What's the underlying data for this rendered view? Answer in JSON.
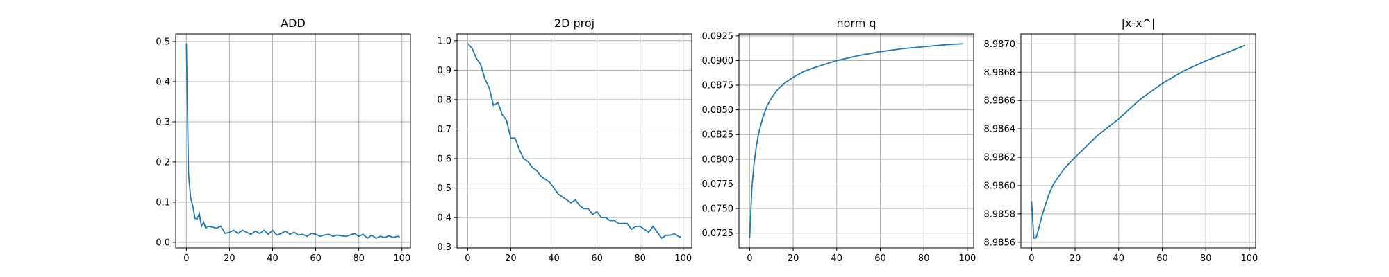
{
  "chart_data": [
    {
      "type": "line",
      "title": "ADD",
      "color": "#1f77b4",
      "grid": true,
      "x": [
        0,
        1,
        2,
        3,
        4,
        5,
        6,
        7,
        8,
        9,
        10,
        12,
        14,
        16,
        18,
        20,
        22,
        24,
        26,
        28,
        30,
        32,
        34,
        36,
        38,
        40,
        42,
        44,
        46,
        48,
        50,
        52,
        54,
        56,
        58,
        60,
        62,
        64,
        66,
        68,
        70,
        72,
        74,
        76,
        78,
        80,
        82,
        84,
        86,
        88,
        90,
        92,
        94,
        96,
        98,
        99
      ],
      "values": [
        0.495,
        0.17,
        0.11,
        0.09,
        0.06,
        0.058,
        0.072,
        0.04,
        0.05,
        0.035,
        0.04,
        0.038,
        0.035,
        0.04,
        0.022,
        0.025,
        0.03,
        0.022,
        0.03,
        0.025,
        0.02,
        0.028,
        0.022,
        0.03,
        0.02,
        0.03,
        0.018,
        0.022,
        0.028,
        0.02,
        0.025,
        0.018,
        0.02,
        0.015,
        0.022,
        0.02,
        0.015,
        0.018,
        0.02,
        0.015,
        0.018,
        0.016,
        0.015,
        0.018,
        0.022,
        0.015,
        0.02,
        0.01,
        0.018,
        0.01,
        0.015,
        0.012,
        0.016,
        0.012,
        0.015,
        0.013
      ],
      "xlim": [
        -4.95,
        103.95
      ],
      "xticks": [
        0,
        20,
        40,
        60,
        80,
        100
      ],
      "ylim": [
        -0.014,
        0.519
      ],
      "yticks": [
        {
          "value": 0,
          "label": "0.0"
        },
        {
          "value": 0.1,
          "label": "0.1"
        },
        {
          "value": 0.2,
          "label": "0.2"
        },
        {
          "value": 0.3,
          "label": "0.3"
        },
        {
          "value": 0.4,
          "label": "0.4"
        },
        {
          "value": 0.5,
          "label": "0.5"
        }
      ]
    },
    {
      "type": "line",
      "title": "2D proj",
      "color": "#1f77b4",
      "grid": true,
      "x": [
        0,
        2,
        4,
        6,
        8,
        10,
        12,
        14,
        16,
        18,
        20,
        22,
        24,
        26,
        28,
        30,
        32,
        34,
        36,
        38,
        40,
        42,
        44,
        46,
        48,
        50,
        52,
        54,
        56,
        58,
        60,
        62,
        64,
        66,
        68,
        70,
        72,
        74,
        76,
        78,
        80,
        82,
        84,
        86,
        88,
        90,
        92,
        94,
        96,
        98,
        99
      ],
      "values": [
        0.99,
        0.975,
        0.94,
        0.92,
        0.87,
        0.84,
        0.78,
        0.79,
        0.75,
        0.73,
        0.67,
        0.67,
        0.63,
        0.6,
        0.59,
        0.57,
        0.56,
        0.54,
        0.53,
        0.52,
        0.5,
        0.48,
        0.47,
        0.46,
        0.45,
        0.46,
        0.44,
        0.43,
        0.43,
        0.41,
        0.42,
        0.4,
        0.4,
        0.39,
        0.39,
        0.38,
        0.38,
        0.38,
        0.36,
        0.37,
        0.37,
        0.36,
        0.35,
        0.37,
        0.35,
        0.33,
        0.34,
        0.34,
        0.345,
        0.335,
        0.335
      ],
      "xlim": [
        -4.95,
        103.95
      ],
      "xticks": [
        0,
        20,
        40,
        60,
        80,
        100
      ],
      "ylim": [
        0.297,
        1.023
      ],
      "yticks": [
        {
          "value": 0.3,
          "label": "0.3"
        },
        {
          "value": 0.4,
          "label": "0.4"
        },
        {
          "value": 0.5,
          "label": "0.5"
        },
        {
          "value": 0.6,
          "label": "0.6"
        },
        {
          "value": 0.7,
          "label": "0.7"
        },
        {
          "value": 0.8,
          "label": "0.8"
        },
        {
          "value": 0.9,
          "label": "0.9"
        },
        {
          "value": 1.0,
          "label": "1.0"
        }
      ]
    },
    {
      "type": "line",
      "title": "norm q",
      "color": "#1f77b4",
      "grid": true,
      "x": [
        0,
        1,
        2,
        3,
        4,
        6,
        8,
        10,
        13,
        16,
        20,
        25,
        30,
        40,
        50,
        60,
        70,
        80,
        90,
        98
      ],
      "values": [
        0.072,
        0.077,
        0.0795,
        0.0812,
        0.0825,
        0.0842,
        0.0854,
        0.0862,
        0.0871,
        0.0877,
        0.0883,
        0.0889,
        0.0893,
        0.09,
        0.0905,
        0.0909,
        0.0912,
        0.0914,
        0.0916,
        0.0917
      ],
      "xlim": [
        -4.9,
        102.9
      ],
      "xticks": [
        0,
        20,
        40,
        60,
        80,
        100
      ],
      "ylim": [
        0.071,
        0.0927
      ],
      "yticks": [
        {
          "value": 0.0725,
          "label": "0.0725"
        },
        {
          "value": 0.075,
          "label": "0.0750"
        },
        {
          "value": 0.0775,
          "label": "0.0775"
        },
        {
          "value": 0.08,
          "label": "0.0800"
        },
        {
          "value": 0.0825,
          "label": "0.0825"
        },
        {
          "value": 0.085,
          "label": "0.0850"
        },
        {
          "value": 0.0875,
          "label": "0.0875"
        },
        {
          "value": 0.09,
          "label": "0.0900"
        },
        {
          "value": 0.0925,
          "label": "0.0925"
        }
      ]
    },
    {
      "type": "line",
      "title": "|x-x^|",
      "color": "#1f77b4",
      "grid": true,
      "x": [
        0,
        1,
        2,
        3,
        5,
        8,
        10,
        15,
        20,
        30,
        40,
        50,
        60,
        70,
        80,
        90,
        98
      ],
      "values": [
        8.98589,
        8.98563,
        8.98563,
        8.98568,
        8.9858,
        8.98594,
        8.98601,
        8.98612,
        8.9862,
        8.98635,
        8.98647,
        8.98661,
        8.98672,
        8.98681,
        8.98688,
        8.98694,
        8.98699
      ],
      "xlim": [
        -4.9,
        102.9
      ],
      "xticks": [
        0,
        20,
        40,
        60,
        80,
        100
      ],
      "ylim": [
        8.98556,
        8.98707
      ],
      "yticks": [
        {
          "value": 8.9856,
          "label": "8.9856"
        },
        {
          "value": 8.9858,
          "label": "8.9858"
        },
        {
          "value": 8.986,
          "label": "8.9860"
        },
        {
          "value": 8.9862,
          "label": "8.9862"
        },
        {
          "value": 8.9864,
          "label": "8.9864"
        },
        {
          "value": 8.9866,
          "label": "8.9866"
        },
        {
          "value": 8.9868,
          "label": "8.9868"
        },
        {
          "value": 8.987,
          "label": "8.9870"
        }
      ]
    }
  ]
}
